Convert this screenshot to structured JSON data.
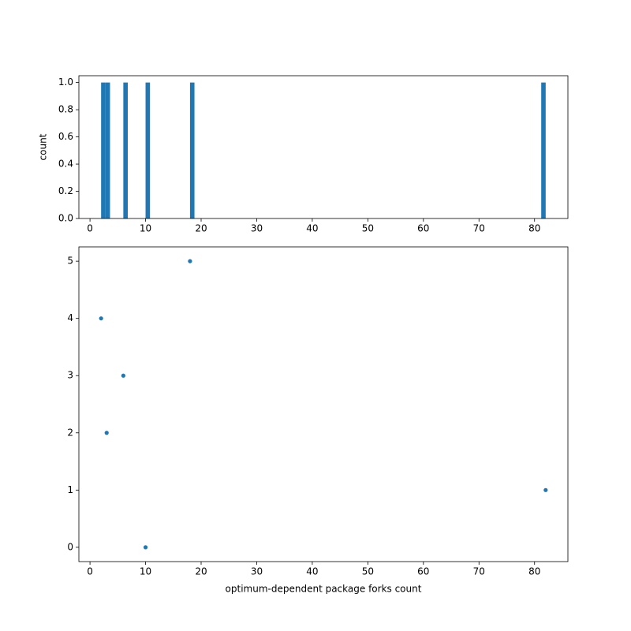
{
  "chart_data": [
    {
      "type": "histogram",
      "ylabel": "count",
      "bins": [
        2,
        2.8,
        3.6,
        6,
        6.8,
        10,
        10.8,
        18,
        18.8,
        81.2,
        82
      ],
      "counts": [
        1,
        1,
        0,
        1,
        0,
        1,
        0,
        1,
        0,
        1
      ],
      "color": "#1f77b4",
      "xlim": [
        -2,
        86
      ],
      "xticks": [
        0,
        10,
        20,
        30,
        40,
        50,
        60,
        70,
        80
      ],
      "ylim": [
        0,
        1.05
      ],
      "yticks": [
        {
          "value": 0,
          "label": "0.0"
        },
        {
          "value": 0.2,
          "label": "0.2"
        },
        {
          "value": 0.4,
          "label": "0.4"
        },
        {
          "value": 0.6,
          "label": "0.6"
        },
        {
          "value": 0.8,
          "label": "0.8"
        },
        {
          "value": 1,
          "label": "1.0"
        }
      ]
    },
    {
      "type": "scatter",
      "xlabel": "optimum-dependent package forks count",
      "x": [
        10,
        82,
        3,
        6,
        2,
        18
      ],
      "y": [
        0,
        1,
        2,
        3,
        4,
        5
      ],
      "color": "#1f77b4",
      "xlim": [
        -2,
        86
      ],
      "xticks": [
        0,
        10,
        20,
        30,
        40,
        50,
        60,
        70,
        80
      ],
      "ylim": [
        -0.25,
        5.25
      ],
      "yticks": [
        0,
        1,
        2,
        3,
        4,
        5
      ]
    }
  ]
}
